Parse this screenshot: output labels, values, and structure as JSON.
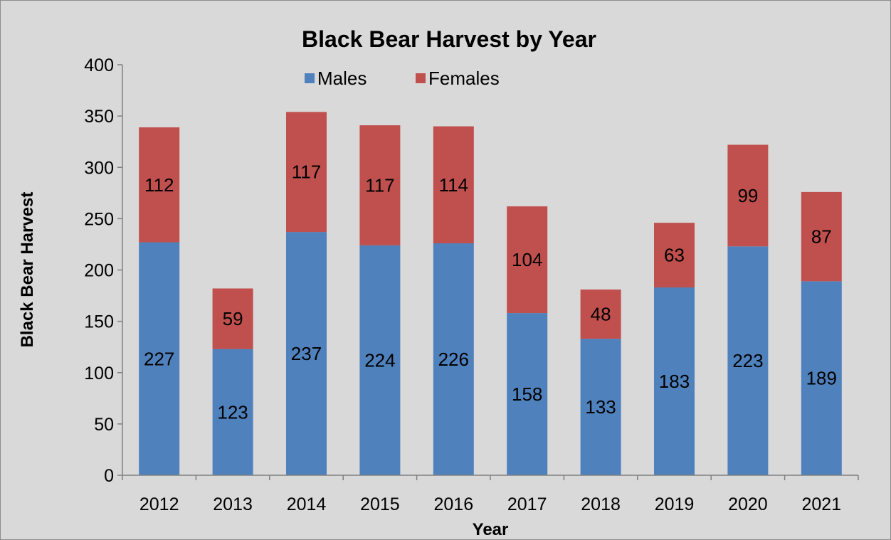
{
  "chart_data": {
    "type": "bar",
    "stacked": true,
    "title": "Black Bear Harvest by Year",
    "xlabel": "Year",
    "ylabel": "Black Bear Harvest",
    "ylim": [
      0,
      400
    ],
    "yticks": [
      0,
      50,
      100,
      150,
      200,
      250,
      300,
      350,
      400
    ],
    "grid": false,
    "legend_position": "top",
    "categories": [
      "2012",
      "2013",
      "2014",
      "2015",
      "2016",
      "2017",
      "2018",
      "2019",
      "2020",
      "2021"
    ],
    "series": [
      {
        "name": "Males",
        "color": "#4f81bd",
        "values": [
          227,
          123,
          237,
          224,
          226,
          158,
          133,
          183,
          223,
          189
        ]
      },
      {
        "name": "Females",
        "color": "#c0504d",
        "values": [
          112,
          59,
          117,
          117,
          114,
          104,
          48,
          63,
          99,
          87
        ]
      }
    ]
  }
}
